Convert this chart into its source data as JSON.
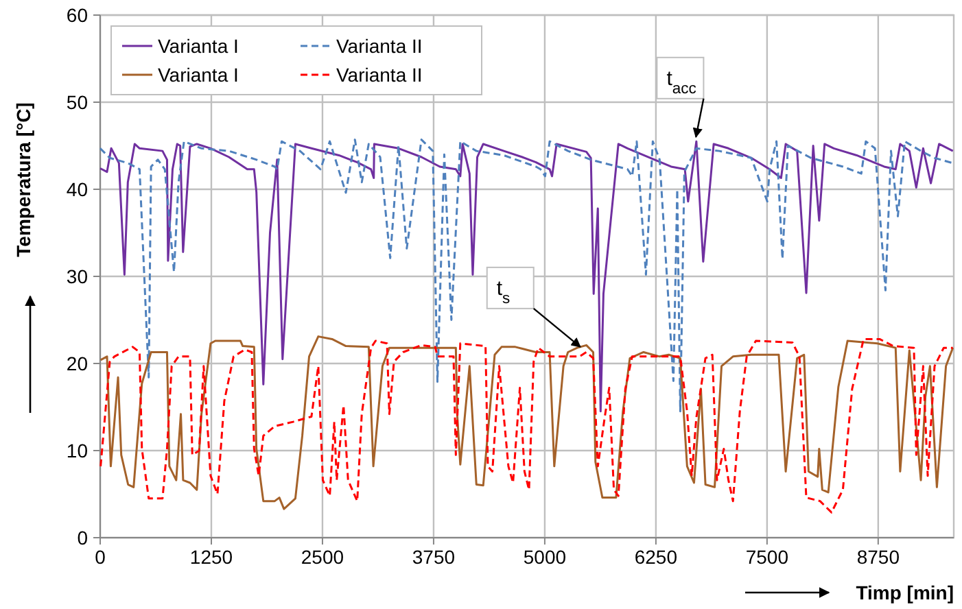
{
  "chart_data": {
    "type": "line",
    "xlabel": "Timp [min]",
    "ylabel": "Temperatura [°C]",
    "xlim": [
      0,
      9600
    ],
    "ylim": [
      0,
      60
    ],
    "xticks": [
      0,
      1250,
      2500,
      3750,
      5000,
      6250,
      7500,
      8750
    ],
    "yticks": [
      0,
      10,
      20,
      30,
      40,
      50,
      60
    ],
    "grid": true,
    "legend": "top left",
    "annotations": [
      {
        "text": "t$_{acc}$",
        "x": 6700,
        "y": 46
      },
      {
        "text": "t$_{s}$",
        "x": 5400,
        "y": 21.9
      }
    ],
    "series": [
      {
        "name": "Varianta I",
        "color": "#7030a0",
        "line_style": "solid",
        "x": [
          0,
          77,
          124,
          211,
          273,
          311,
          388,
          443,
          701,
          752,
          763,
          814,
          866,
          900,
          932,
          1010,
          1087,
          1242,
          1448,
          1654,
          1731,
          1757,
          1835,
          1910,
          1990,
          2051,
          2195,
          2376,
          2685,
          2891,
          3046,
          3077,
          3082,
          3355,
          3613,
          3819,
          4000,
          4050,
          4076,
          4154,
          4190,
          4241,
          4308,
          4540,
          4746,
          4901,
          5055,
          5082,
          5133,
          5468,
          5519,
          5550,
          5597,
          5628,
          5660,
          5828,
          5931,
          6189,
          6421,
          6576,
          6612,
          6705,
          6782,
          6900,
          7065,
          7323,
          7529,
          7658,
          7710,
          7838,
          7941,
          8019,
          8086,
          8147,
          8251,
          8508,
          8817,
          8946,
          8997,
          9101,
          9178,
          9256,
          9342,
          9435,
          9590
        ],
        "values": [
          42.4,
          42,
          44.7,
          43,
          30.2,
          40.8,
          45.2,
          44.7,
          44.4,
          43.4,
          31.8,
          42.3,
          45.2,
          45,
          32.8,
          44.9,
          45.2,
          44.7,
          43.7,
          42.3,
          42.3,
          39.7,
          17.6,
          35,
          43.4,
          20.5,
          45.2,
          44.7,
          43.9,
          43.1,
          42.3,
          41.3,
          45.2,
          44.7,
          43.7,
          42.6,
          42.3,
          41.5,
          45.2,
          41.8,
          30.2,
          43.7,
          45.2,
          44.4,
          43.7,
          43.1,
          42.3,
          41.5,
          45.2,
          44.3,
          43.6,
          28,
          37.8,
          14.5,
          28,
          45.2,
          44.7,
          43.6,
          42.6,
          42.3,
          38.6,
          45.5,
          31.7,
          45.2,
          44.7,
          43.6,
          42.3,
          41.3,
          45.2,
          44.4,
          28.1,
          45,
          36.4,
          45.2,
          44.7,
          43.9,
          42.6,
          42.3,
          45.2,
          44.4,
          40.2,
          44.7,
          40.7,
          45.2,
          44.4
        ]
      },
      {
        "name": "Varianta II",
        "color": "#4f81bd",
        "line_style": "dashed",
        "x": [
          0,
          108,
          314,
          443,
          546,
          572,
          649,
          727,
          830,
          881,
          943,
          1139,
          1448,
          1757,
          1963,
          1990,
          2041,
          2247,
          2478,
          2582,
          2763,
          2865,
          2942,
          3020,
          3149,
          3262,
          3355,
          3448,
          3613,
          3741,
          3793,
          3870,
          3950,
          4050,
          4231,
          4540,
          4901,
          4952,
          5004,
          5055,
          5261,
          5519,
          5931,
          5983,
          6034,
          6138,
          6215,
          6292,
          6447,
          6490,
          6524,
          6570,
          6705,
          6962,
          7323,
          7503,
          7529,
          7606,
          7673,
          7735,
          7993,
          8353,
          8560,
          8611,
          8714,
          8832,
          8894,
          8971,
          9049,
          9230,
          9384,
          9590
        ],
        "values": [
          44.7,
          43.6,
          43,
          42.3,
          18.4,
          42.6,
          43.4,
          42.3,
          30.5,
          40.8,
          45.5,
          44.7,
          44.4,
          43.4,
          42.6,
          42.3,
          45.5,
          44.4,
          42.3,
          45.5,
          39.6,
          45.7,
          40.8,
          45.2,
          43.7,
          32.1,
          45,
          33.2,
          45.7,
          44.4,
          17.9,
          44,
          25,
          45.5,
          44.4,
          43.9,
          42.6,
          42.3,
          41.5,
          45.5,
          44.4,
          43.4,
          42.3,
          41.5,
          45.5,
          30.2,
          45.5,
          43.4,
          18,
          40,
          14.5,
          42,
          44.7,
          44.4,
          43.6,
          38.6,
          42.3,
          45.5,
          32,
          45,
          43.6,
          42.6,
          41.8,
          45.5,
          44.7,
          28.4,
          44.4,
          36.9,
          45.5,
          44.4,
          43.6,
          43
        ]
      },
      {
        "name": "Varianta I",
        "color": "#a5622a",
        "line_style": "solid",
        "x": [
          5,
          77,
          119,
          201,
          237,
          314,
          376,
          469,
          572,
          752,
          778,
          855,
          907,
          933,
          1010,
          1087,
          1139,
          1242,
          1294,
          1577,
          1603,
          1731,
          1757,
          1835,
          1963,
          2015,
          2067,
          2195,
          2273,
          2350,
          2453,
          2608,
          2763,
          3020,
          3072,
          3175,
          3252,
          3716,
          4000,
          4015,
          4050,
          4154,
          4231,
          4308,
          4437,
          4514,
          4669,
          4901,
          5055,
          5107,
          5210,
          5261,
          5365,
          5468,
          5545,
          5570,
          5648,
          5802,
          5879,
          5957,
          6111,
          6292,
          6395,
          6524,
          6601,
          6679,
          6756,
          6807,
          6911,
          6988,
          7117,
          7323,
          7632,
          7710,
          7838,
          7916,
          7967,
          8070,
          8086,
          8121,
          8189,
          8302,
          8405,
          8740,
          8946,
          8997,
          9101,
          9230,
          9281,
          9333,
          9410,
          9512,
          9590
        ],
        "values": [
          20.4,
          20.8,
          8.2,
          18.4,
          9.5,
          6.1,
          5.8,
          17.7,
          21.3,
          21.3,
          8.2,
          6.6,
          14.2,
          6.6,
          6.3,
          5.5,
          14.2,
          22.3,
          22.6,
          22.6,
          22,
          21.9,
          10.2,
          4.2,
          4.2,
          4.6,
          3.3,
          4.5,
          11.7,
          20.8,
          23.1,
          22.8,
          22,
          21.9,
          8.2,
          19.7,
          21.8,
          21.8,
          21.8,
          14.2,
          8.4,
          19.7,
          6.1,
          6,
          21,
          21.9,
          21.9,
          21.3,
          21.3,
          8.2,
          19.7,
          21.3,
          21.8,
          22.1,
          21.3,
          8.7,
          4.6,
          4.6,
          14.5,
          20.6,
          21.3,
          20.8,
          21,
          20.6,
          8.2,
          6.3,
          17.1,
          6.1,
          5.8,
          19.7,
          20.8,
          21,
          21,
          7.6,
          20.6,
          21,
          7.6,
          7,
          10.2,
          5.5,
          5.2,
          17.3,
          22.6,
          22.3,
          21.8,
          7.6,
          21.5,
          6.6,
          16.2,
          19.7,
          5.8,
          19.7,
          21.8
        ]
      },
      {
        "name": "Varianta II",
        "color": "#ff0000",
        "line_style": "dashed",
        "x": [
          5,
          108,
          160,
          366,
          443,
          469,
          546,
          701,
          752,
          804,
          881,
          1010,
          1036,
          1113,
          1164,
          1242,
          1319,
          1396,
          1500,
          1628,
          1705,
          1731,
          1783,
          1835,
          1963,
          2169,
          2376,
          2453,
          2504,
          2582,
          2633,
          2660,
          2737,
          2788,
          2891,
          2942,
          3046,
          3097,
          3226,
          3252,
          3304,
          3407,
          3613,
          3768,
          3793,
          3974,
          4000,
          4050,
          4334,
          4360,
          4411,
          4488,
          4591,
          4643,
          4720,
          4772,
          4823,
          4875,
          4927,
          5055,
          5261,
          5390,
          5468,
          5545,
          5597,
          5674,
          5725,
          5777,
          5828,
          5906,
          5983,
          6292,
          6524,
          6601,
          6653,
          6705,
          6807,
          6885,
          6937,
          7014,
          7066,
          7117,
          7194,
          7271,
          7374,
          7786,
          7864,
          7941,
          8096,
          8225,
          8353,
          8457,
          8586,
          8766,
          8920,
          9152,
          9178,
          9256,
          9307,
          9384,
          9487,
          9590
        ],
        "values": [
          8.2,
          20.2,
          20.8,
          21.9,
          21.3,
          10.2,
          4.5,
          4.5,
          10.2,
          19.7,
          20.8,
          20.8,
          9.5,
          10,
          19.7,
          7.1,
          5,
          15.7,
          20.8,
          21.6,
          21.3,
          10.2,
          7.1,
          11.7,
          12.8,
          13.3,
          13.9,
          19.7,
          6.6,
          4.8,
          13.3,
          6.6,
          15.2,
          6.6,
          4.2,
          14.2,
          21.8,
          22.6,
          22.3,
          14.2,
          20.2,
          21.3,
          22.1,
          21.9,
          20.8,
          20.8,
          9.5,
          22.3,
          22,
          8.2,
          7.6,
          19.7,
          8.2,
          6.3,
          17.2,
          7.6,
          5.5,
          20.2,
          21.8,
          20.8,
          20.8,
          20.8,
          21.3,
          20.6,
          8.2,
          13.8,
          17.2,
          5.5,
          4.8,
          17.1,
          20.8,
          20.8,
          20.8,
          14.5,
          7.1,
          13.8,
          20.6,
          21,
          6.6,
          10.2,
          6.6,
          4.2,
          14.5,
          20.8,
          22.6,
          22.4,
          20.8,
          4.6,
          4.2,
          2.9,
          5.5,
          17.1,
          22.8,
          22.8,
          22,
          21.8,
          9.5,
          19.7,
          7.1,
          19.7,
          21.8,
          21.8
        ]
      }
    ]
  }
}
